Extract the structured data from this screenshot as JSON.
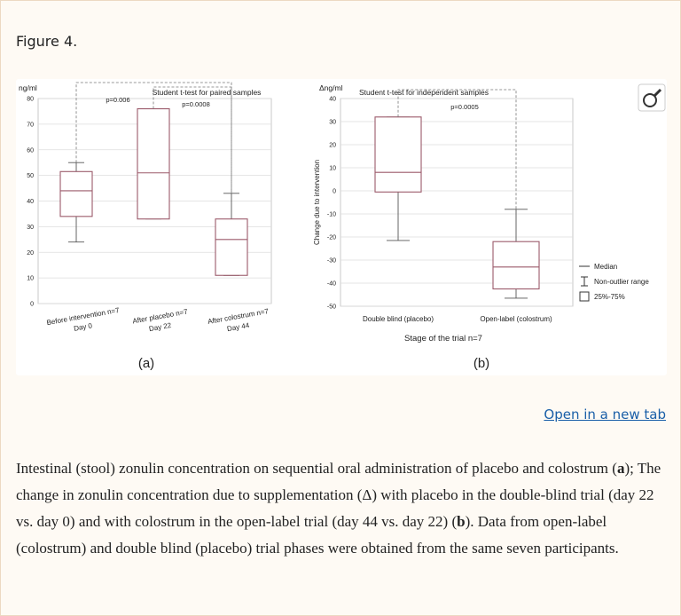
{
  "figure_label": "Figure 4.",
  "link": "Open in a new tab",
  "caption": [
    "Intestinal (stool) zonulin concentration on sequential oral administration of placebo and colostrum (",
    "a",
    "); The change in zonulin concentration due to supplementation (Δ) with placebo in the double-blind trial (day 22 vs. day 0) and with colostrum in the open-label trial (day 44 vs. day 22) (",
    "b",
    "). Data from open-label (colostrum) and double blind (placebo) trial phases were obtained from the same seven participants."
  ],
  "chart_data": [
    {
      "type": "box",
      "title": "Student t-test for paired samples",
      "y_label": "ng/ml",
      "panel_label": "(a)",
      "categories": [
        [
          "Before intervention n=7",
          "Day 0"
        ],
        [
          "After placebo n=7",
          "Day 22"
        ],
        [
          "After colostrum n=7",
          "Day 44"
        ]
      ],
      "boxes": [
        {
          "min": 24,
          "q1": 34,
          "median": 44,
          "q3": 51.5,
          "max": 55
        },
        {
          "min": 33,
          "q1": 33,
          "median": 51,
          "q3": 76,
          "max": 76
        },
        {
          "min": 11,
          "q1": 11,
          "median": 25,
          "q3": 33,
          "max": 43
        }
      ],
      "annotations": [
        "p=0.006",
        "p=0.0008"
      ],
      "color": "#9b5a6a",
      "grid": true,
      "ylim": [
        0,
        80
      ],
      "yticks": [
        0,
        10,
        20,
        30,
        40,
        50,
        60,
        70,
        80
      ]
    },
    {
      "type": "box",
      "title": "Student t-test for independent samples",
      "y_label": "Δng/ml",
      "y_axis_title": "Change due to intervention",
      "x_label": "Stage of the trial n=7",
      "panel_label": "(b)",
      "categories": [
        [
          "Double blind (placebo)"
        ],
        [
          "Open-label (colostrum)"
        ]
      ],
      "boxes": [
        {
          "min": -21.5,
          "q1": -0.5,
          "median": 8,
          "q3": 32,
          "max": 32
        },
        {
          "min": -46.5,
          "q1": -42.5,
          "median": -33,
          "q3": -22,
          "max": -8
        }
      ],
      "annotations": [
        "p=0.0005"
      ],
      "legend": [
        "Median",
        "Non-outlier range",
        "25%-75%"
      ],
      "color": "#9b5a6a",
      "grid": true,
      "ylim": [
        -50,
        40
      ],
      "yticks": [
        -50,
        -40,
        -30,
        -20,
        -10,
        0,
        10,
        20,
        30,
        40
      ]
    }
  ]
}
